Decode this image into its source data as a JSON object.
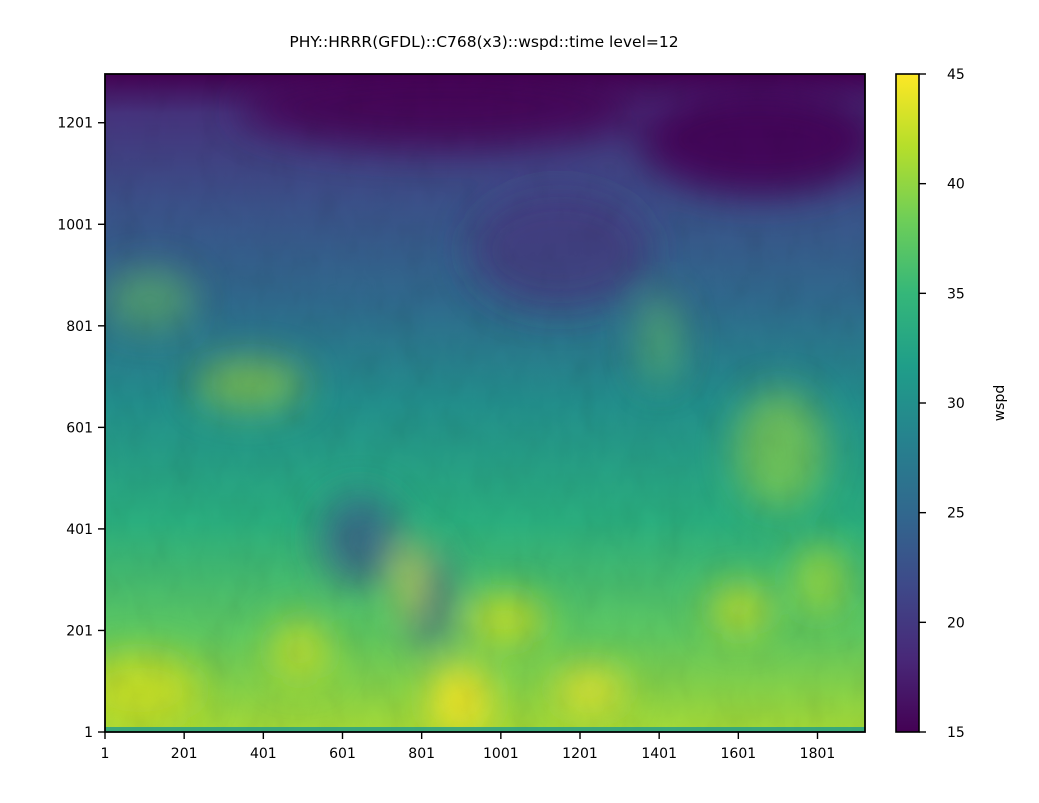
{
  "chart_data": {
    "type": "heatmap",
    "title": "PHY::HRRR(GFDL)::C768(x3)::wspd::time level=12",
    "xlabel": "",
    "ylabel": "",
    "x_ticks": [
      "1",
      "201",
      "401",
      "601",
      "801",
      "1001",
      "1201",
      "1401",
      "1601",
      "1801"
    ],
    "y_ticks": [
      "1",
      "201",
      "401",
      "601",
      "801",
      "1001",
      "1201"
    ],
    "xlim": [
      1,
      1921
    ],
    "ylim": [
      1,
      1297
    ],
    "colorbar": {
      "label": "wspd",
      "ticks": [
        "15",
        "20",
        "25",
        "30",
        "35",
        "40",
        "45"
      ],
      "range": [
        15,
        45
      ],
      "colormap": "viridis",
      "colors": [
        "#440154",
        "#482878",
        "#3e4989",
        "#31688e",
        "#26828e",
        "#1f9e89",
        "#35b779",
        "#6ece58",
        "#b5de2b",
        "#fde725"
      ]
    },
    "field_description": "wind speed field; high values (40-45) concentrated near bottom, low values (15-20) along top edge",
    "field_regions": [
      {
        "x_frac": [
          0.0,
          1.0
        ],
        "y_frac": [
          0.0,
          0.09
        ],
        "value": 16
      },
      {
        "x_frac": [
          0.0,
          1.0
        ],
        "y_frac": [
          0.09,
          0.3
        ],
        "value": 21
      },
      {
        "x_frac": [
          0.0,
          1.0
        ],
        "y_frac": [
          0.3,
          0.55
        ],
        "value": 29
      },
      {
        "x_frac": [
          0.0,
          1.0
        ],
        "y_frac": [
          0.55,
          0.8
        ],
        "value": 33
      },
      {
        "x_frac": [
          0.0,
          1.0
        ],
        "y_frac": [
          0.8,
          1.0
        ],
        "value": 38
      }
    ]
  }
}
